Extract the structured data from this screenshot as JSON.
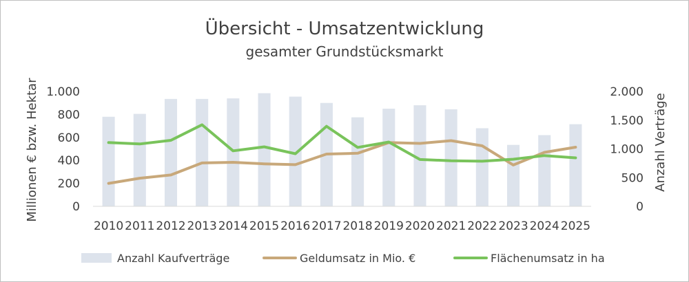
{
  "chart_data": {
    "type": "bar",
    "title": "Übersicht - Umsatzentwicklung",
    "subtitle": "gesamter Grundstücksmarkt",
    "categories": [
      "2010",
      "2011",
      "2012",
      "2013",
      "2014",
      "2015",
      "2016",
      "2017",
      "2018",
      "2019",
      "2020",
      "2021",
      "2022",
      "2023",
      "2024",
      "2025"
    ],
    "y_left": {
      "label": "Millionen € bzw. Hektar",
      "range": [
        0,
        1000
      ],
      "ticks": [
        0,
        200,
        400,
        600,
        800,
        1000
      ],
      "tick_labels": [
        "0",
        "200",
        "400",
        "600",
        "800",
        "1.000"
      ]
    },
    "y_right": {
      "label": "Anzahl Verträge",
      "range": [
        0,
        2000
      ],
      "ticks": [
        0,
        500,
        1000,
        1500,
        2000
      ],
      "tick_labels": [
        "0",
        "500",
        "1.000",
        "1.500",
        "2.000"
      ]
    },
    "series": [
      {
        "name": "Anzahl Kaufverträge",
        "type": "bar",
        "axis": "right",
        "color": "#dde3ec",
        "values": [
          1560,
          1610,
          1870,
          1870,
          1880,
          1970,
          1910,
          1800,
          1550,
          1700,
          1760,
          1690,
          1360,
          1070,
          1240,
          1430
        ]
      },
      {
        "name": "Geldumsatz in Mio. €",
        "type": "line",
        "axis": "left",
        "color": "#c8a87a",
        "values": [
          200,
          245,
          273,
          378,
          383,
          370,
          363,
          455,
          462,
          555,
          548,
          572,
          527,
          360,
          470,
          515
        ]
      },
      {
        "name": "Flächenumsatz in ha",
        "type": "line",
        "axis": "left",
        "color": "#79c35b",
        "values": [
          555,
          543,
          575,
          710,
          483,
          518,
          458,
          697,
          513,
          560,
          408,
          397,
          393,
          410,
          442,
          422
        ]
      }
    ],
    "grid": false,
    "legend_position": "bottom"
  }
}
